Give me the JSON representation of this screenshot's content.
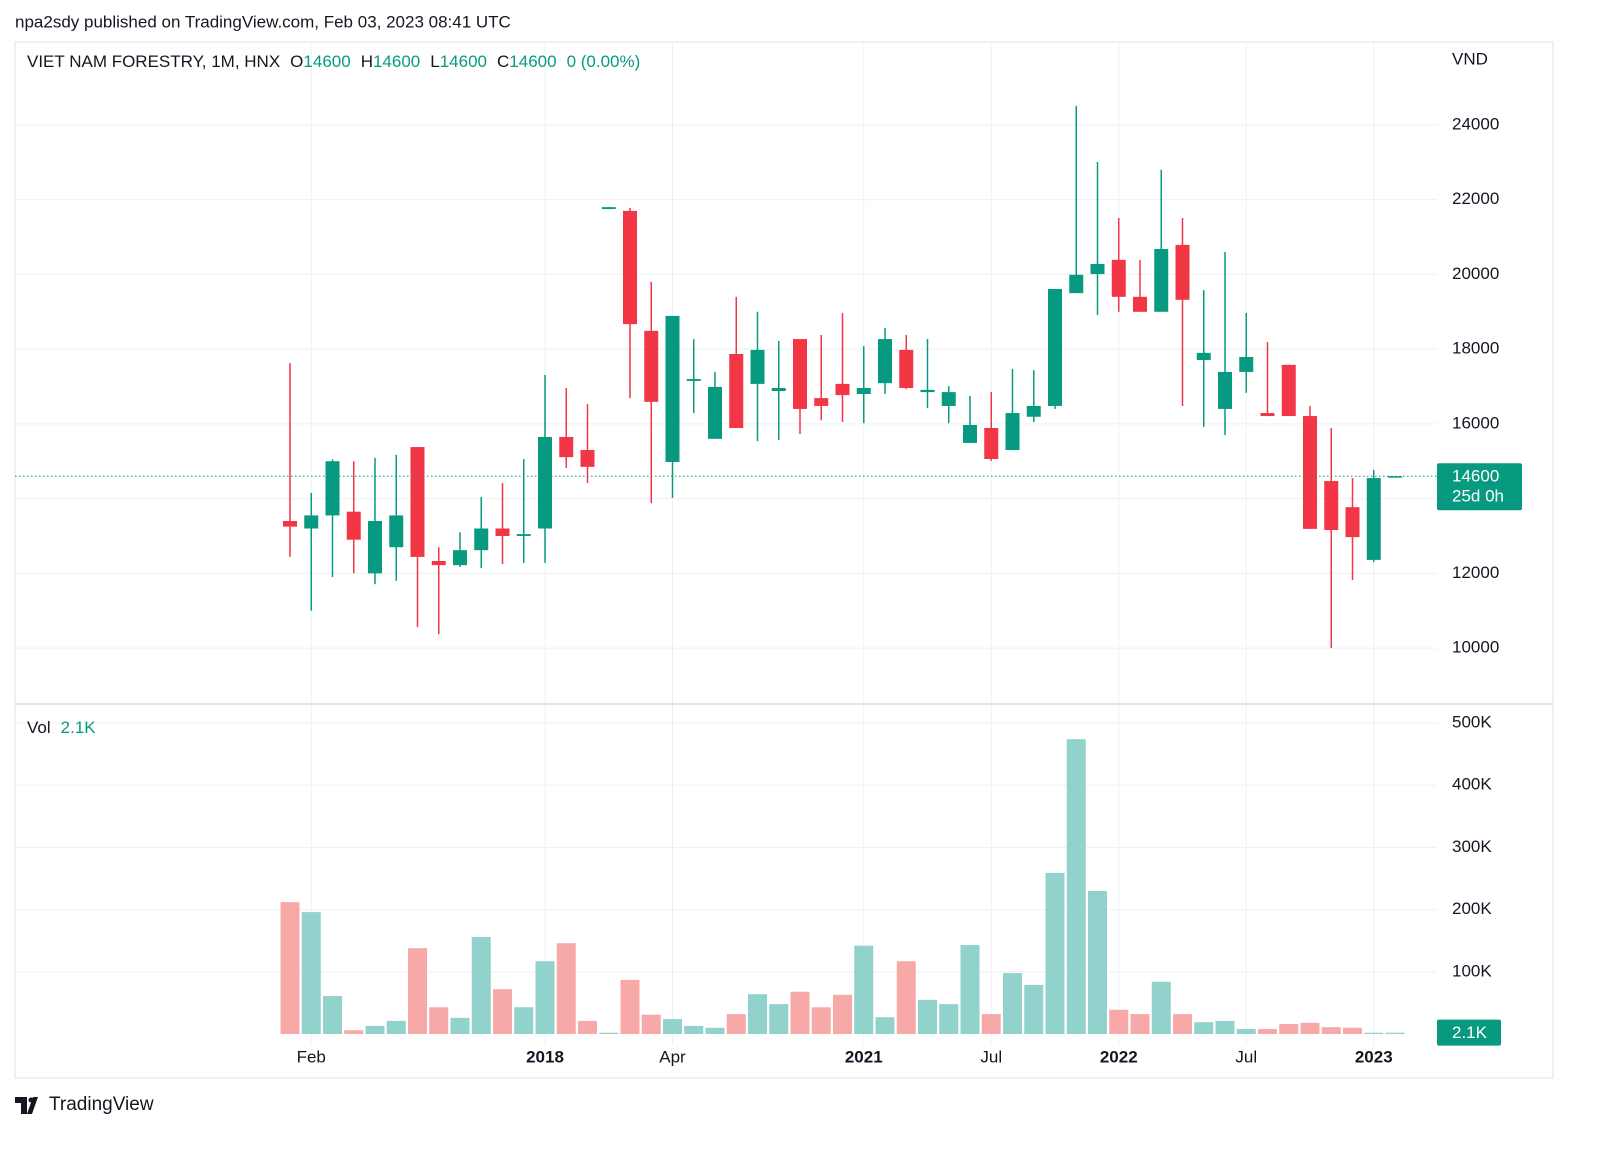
{
  "header": {
    "publisher": "npa2sdy published on TradingView.com, Feb 03, 2023 08:41 UTC"
  },
  "footer": {
    "brand": "TradingView"
  },
  "chart_data": {
    "type": "candlestick",
    "symbol": "VIET NAM FORESTRY, 1M, HNX",
    "legend": {
      "o_label": "O",
      "open": 14600,
      "h_label": "H",
      "high": 14600,
      "l_label": "L",
      "low": 14600,
      "c_label": "C",
      "close": 14600,
      "change": "0 (0.00%)"
    },
    "currency": "VND",
    "last_price": 14600,
    "countdown": "25d 0h",
    "up_color": "#089981",
    "down_color": "#f23645",
    "volume_up_color": "#92d2cc",
    "volume_down_color": "#f7a9a7",
    "grid": true,
    "categories": [
      null,
      "Feb",
      null,
      null,
      null,
      null,
      null,
      null,
      null,
      null,
      null,
      null,
      "2018",
      null,
      null,
      null,
      null,
      null,
      "Apr",
      null,
      null,
      null,
      null,
      null,
      null,
      null,
      null,
      "2021",
      null,
      null,
      null,
      null,
      null,
      "Jul",
      null,
      null,
      null,
      null,
      null,
      "2022",
      null,
      null,
      null,
      null,
      null,
      "Jul",
      null,
      null,
      null,
      null,
      null,
      "2023",
      null
    ],
    "open": [
      13400,
      13200,
      13550,
      13650,
      12000,
      12700,
      15380,
      12330,
      12220,
      12620,
      13200,
      13000,
      13200,
      15650,
      15300,
      21750,
      21700,
      18490,
      14980,
      17150,
      15600,
      17870,
      17070,
      16880,
      18270,
      16690,
      17070,
      16800,
      17090,
      17980,
      16850,
      16480,
      15490,
      15890,
      15300,
      16190,
      16480,
      19500,
      20010,
      20390,
      19400,
      19000,
      20790,
      17710,
      16400,
      17390,
      16290,
      17580,
      16210,
      14470,
      13770,
      12360,
      14600
    ],
    "high": [
      17630,
      14150,
      15050,
      15000,
      15090,
      15170,
      15380,
      12700,
      13100,
      14040,
      14420,
      15060,
      17310,
      16960,
      16530,
      21800,
      21780,
      19800,
      18890,
      18270,
      17390,
      19400,
      19000,
      18220,
      18270,
      18380,
      18970,
      18080,
      18570,
      18380,
      18270,
      17010,
      16750,
      16850,
      17470,
      17440,
      19610,
      24510,
      23010,
      21510,
      20390,
      22800,
      21510,
      19580,
      20600,
      18970,
      18190,
      17580,
      16480,
      15890,
      14550,
      14770,
      14600
    ],
    "low": [
      12440,
      11000,
      11900,
      12000,
      11710,
      11800,
      10560,
      10370,
      12170,
      12140,
      12250,
      12280,
      12280,
      14820,
      14420,
      21750,
      16690,
      13880,
      14020,
      16290,
      15600,
      15890,
      15540,
      15570,
      15730,
      16100,
      16050,
      16020,
      16800,
      16930,
      16420,
      16020,
      15490,
      15010,
      15300,
      16050,
      16400,
      19500,
      18910,
      19000,
      19000,
      19000,
      16480,
      15920,
      15700,
      16830,
      16210,
      16210,
      13190,
      10000,
      11820,
      12300,
      14600
    ],
    "close": [
      13250,
      13550,
      15000,
      12900,
      13400,
      13550,
      12440,
      12220,
      12620,
      13200,
      13000,
      13050,
      15650,
      15110,
      14850,
      21800,
      18670,
      16590,
      18890,
      17200,
      16990,
      15890,
      17980,
      16960,
      16400,
      16480,
      16770,
      16960,
      18270,
      16960,
      16910,
      16850,
      15970,
      15060,
      16290,
      16480,
      19610,
      19990,
      20280,
      19400,
      19000,
      20680,
      19320,
      17900,
      17390,
      17790,
      16210,
      16210,
      13190,
      13160,
      12970,
      14550,
      14600
    ],
    "ylim": [
      8530,
      26220
    ],
    "yticks": [
      10000,
      12000,
      14000,
      16000,
      18000,
      20000,
      22000,
      24000
    ],
    "volume_title": "Vol",
    "volume_last": {
      "value": 2100,
      "label": "2.1K"
    },
    "volume": [
      212000,
      196000,
      61000,
      6000,
      13000,
      21000,
      138000,
      43000,
      26000,
      156000,
      72000,
      43000,
      117000,
      146000,
      21000,
      2000,
      87000,
      31000,
      24000,
      13000,
      10000,
      32000,
      64000,
      48000,
      68000,
      43000,
      63000,
      142000,
      27000,
      117000,
      55000,
      48000,
      143000,
      32000,
      98000,
      79000,
      259000,
      474000,
      230000,
      39000,
      32000,
      84000,
      32000,
      19000,
      21000,
      8000,
      8000,
      16000,
      18000,
      11000,
      10000,
      2000,
      2100
    ],
    "volume_ylim": [
      -17700,
      529000
    ],
    "volume_yticks": [
      {
        "value": 100000,
        "label": "100K"
      },
      {
        "value": 200000,
        "label": "200K"
      },
      {
        "value": 300000,
        "label": "300K"
      },
      {
        "value": 400000,
        "label": "400K"
      },
      {
        "value": 500000,
        "label": "500K"
      }
    ]
  }
}
